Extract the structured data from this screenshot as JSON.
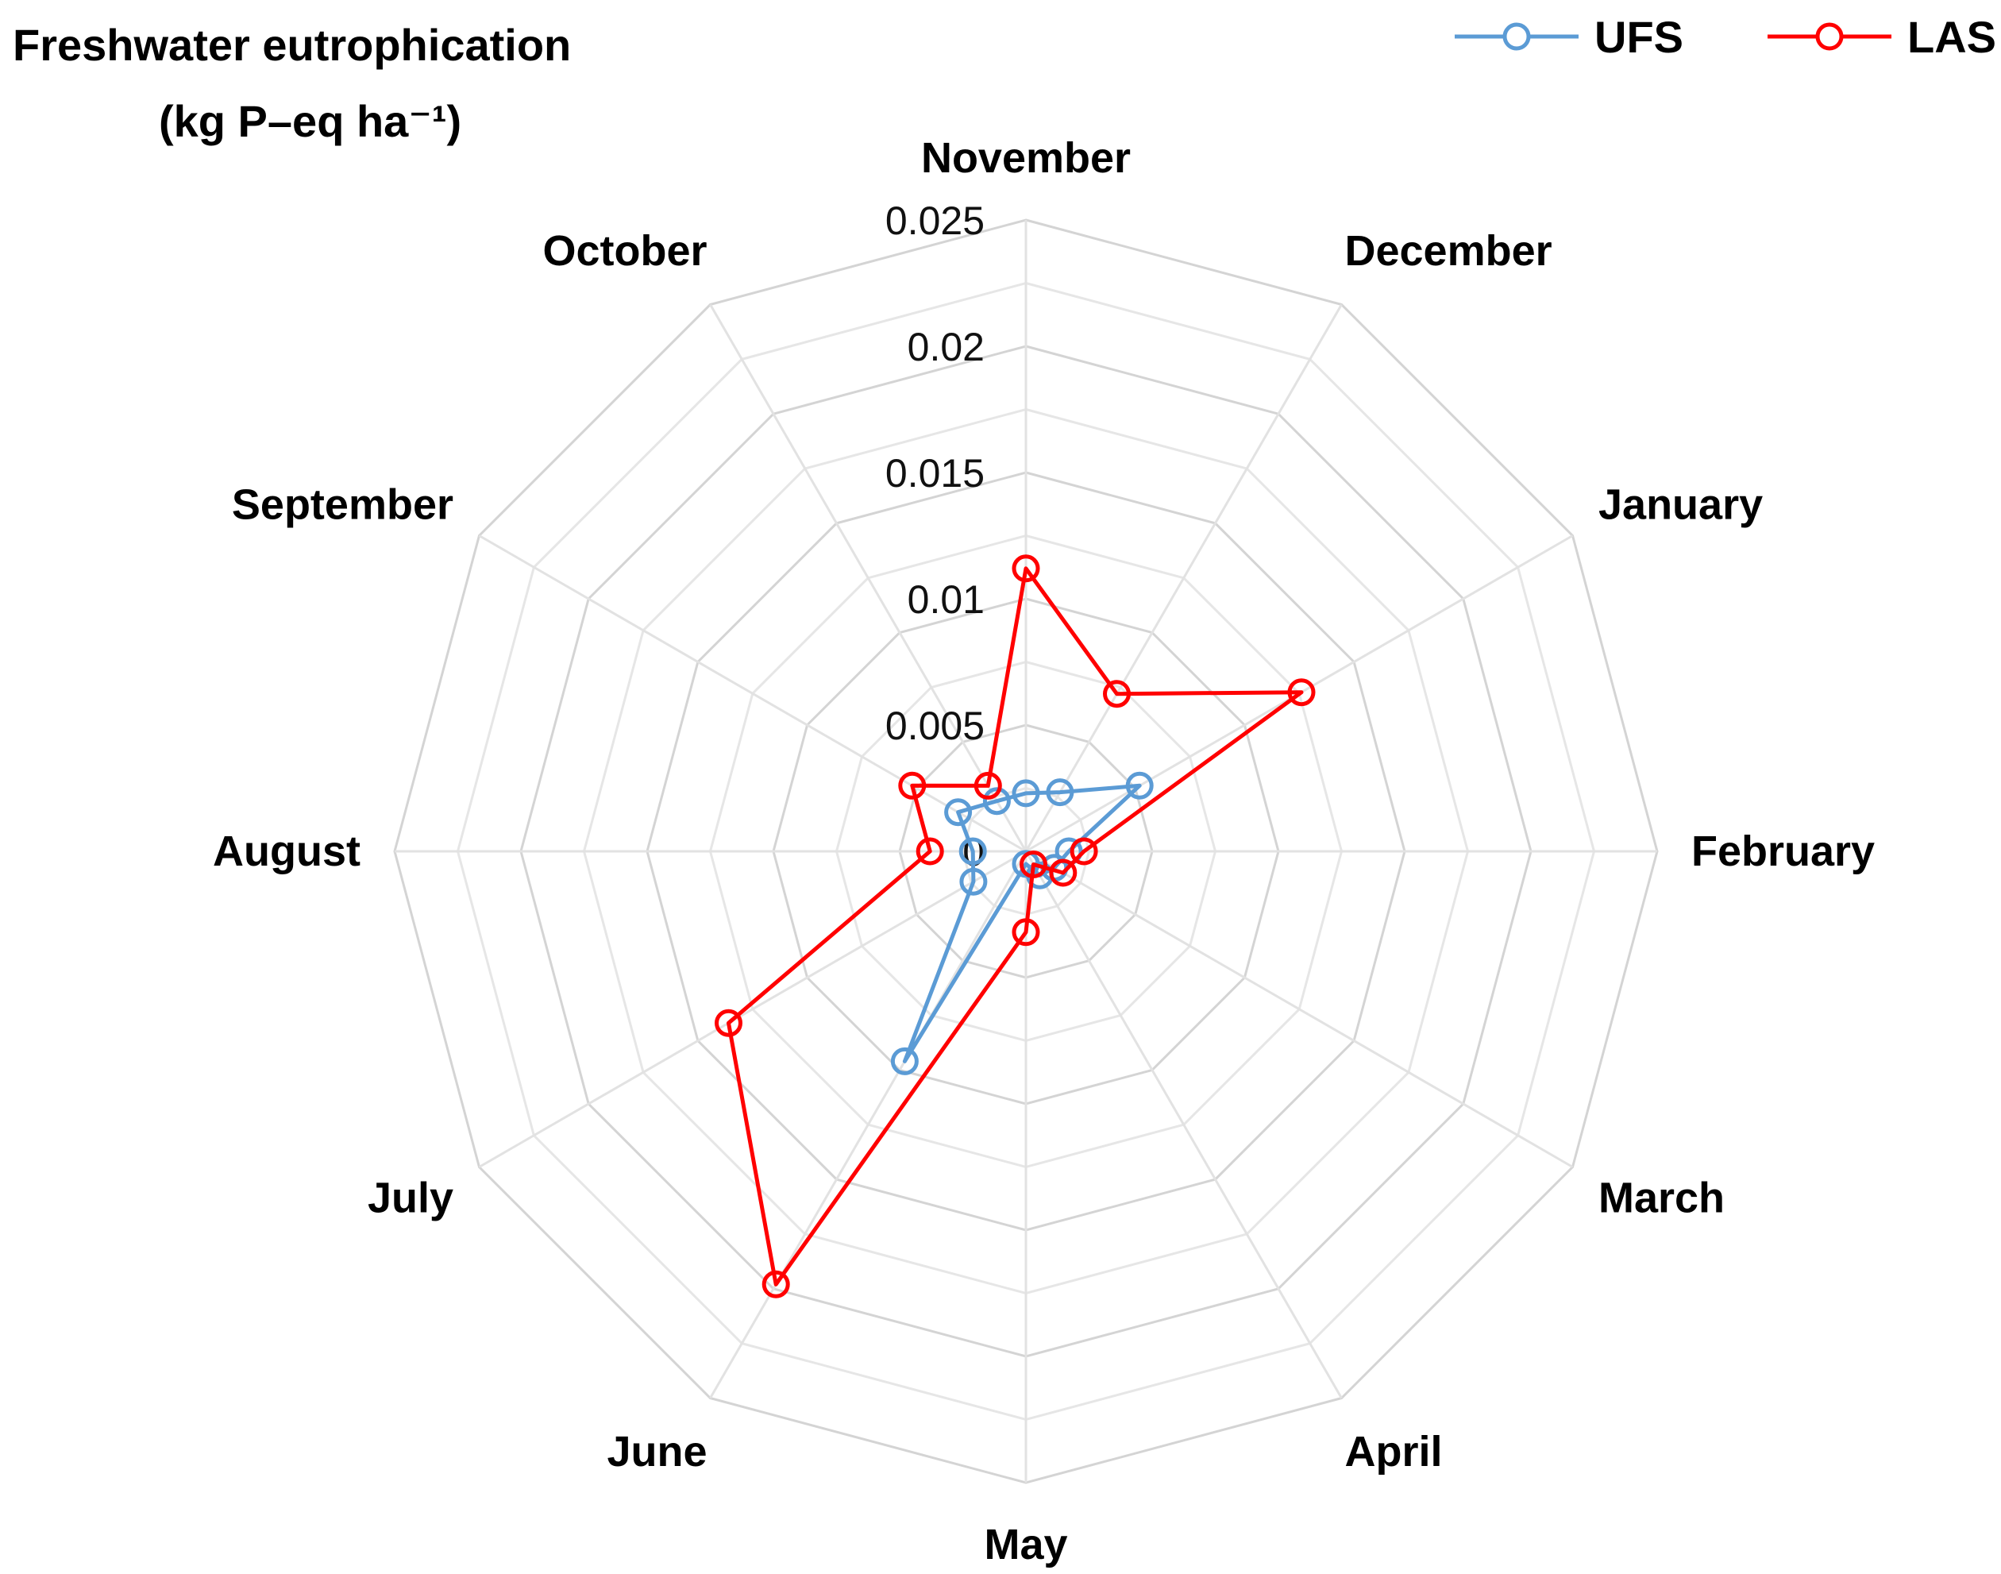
{
  "chart_data": {
    "type": "radar",
    "title": [
      "Freshwater eutrophication",
      "(kg P–eq ha⁻¹)"
    ],
    "categories": [
      "November",
      "December",
      "January",
      "February",
      "March",
      "April",
      "May",
      "June",
      "July",
      "August",
      "September",
      "October"
    ],
    "rlim": [
      0,
      0.025
    ],
    "ticks": [
      "0",
      "0.005",
      "0.01",
      "0.015",
      "0.02",
      "0.025"
    ],
    "tick_values": [
      0,
      0.005,
      0.01,
      0.015,
      0.02,
      0.025
    ],
    "grid": true,
    "legend_position": "top-right",
    "series": [
      {
        "name": "UFS",
        "color": "#5b9bd5",
        "values": [
          0.0023,
          0.0027,
          0.0052,
          0.0017,
          0.0013,
          0.0011,
          0.0005,
          0.0096,
          0.0024,
          0.0021,
          0.0031,
          0.0023
        ]
      },
      {
        "name": "LAS",
        "color": "#ff0000",
        "values": [
          0.0112,
          0.0072,
          0.0126,
          0.0023,
          0.0017,
          0.0006,
          0.0032,
          0.0198,
          0.0136,
          0.0038,
          0.0052,
          0.003
        ]
      }
    ]
  }
}
